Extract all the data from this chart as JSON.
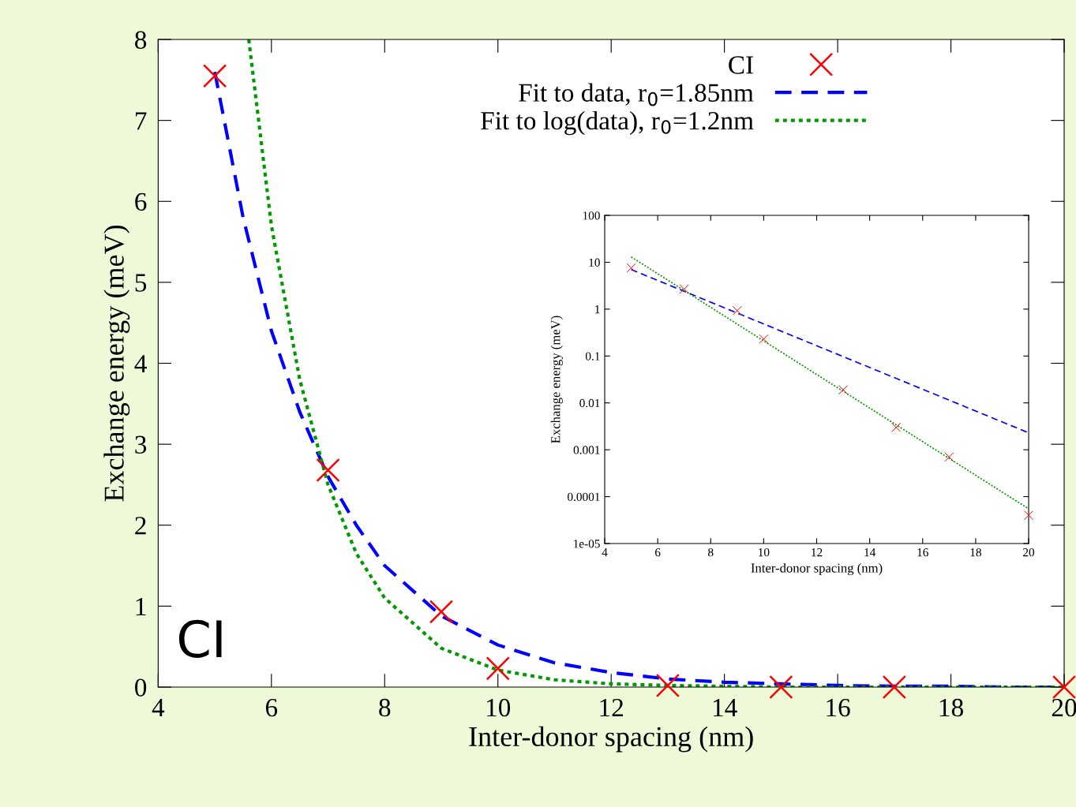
{
  "chart_data": [
    {
      "type": "scatter",
      "xlabel": "Inter-donor spacing (nm)",
      "ylabel": "Exchange energy (meV)",
      "xlim": [
        4,
        20
      ],
      "ylim": [
        0,
        8
      ],
      "xticks": [
        4,
        6,
        8,
        10,
        12,
        14,
        16,
        18,
        20
      ],
      "yticks": [
        0,
        1,
        2,
        3,
        4,
        5,
        6,
        7,
        8
      ],
      "legend": "top right",
      "grid": false,
      "annotations": [
        "CI"
      ],
      "series": [
        {
          "name": "CI",
          "type": "scatter",
          "marker": "cross",
          "color": "#ff0000",
          "x": [
            5,
            7,
            9,
            10,
            13,
            15,
            17,
            20
          ],
          "values": [
            7.55,
            2.68,
            0.93,
            0.23,
            0.02,
            0.0,
            0.0,
            0.0
          ]
        },
        {
          "name": "Fit to data, r$_{0}$=1.85nm",
          "type": "line",
          "line_style": "dashed",
          "color": "#0000ff",
          "x": [
            5,
            5.5,
            6,
            6.5,
            7,
            7.5,
            8,
            9,
            10,
            11,
            12,
            13,
            14,
            15,
            16,
            17,
            18,
            19,
            20
          ],
          "values": [
            7.6,
            5.8,
            4.4,
            3.4,
            2.6,
            2.0,
            1.5,
            0.88,
            0.52,
            0.3,
            0.18,
            0.1,
            0.06,
            0.04,
            0.02,
            0.01,
            0.01,
            0.0,
            0.0
          ]
        },
        {
          "name": "Fit to log(data), r$_{0}$=1.2nm",
          "type": "line",
          "line_style": "dotted",
          "color": "#009900",
          "x": [
            5.6,
            6,
            6.5,
            7,
            7.5,
            8,
            9,
            10,
            11,
            12,
            13,
            14,
            15,
            16,
            17,
            18,
            19,
            20
          ],
          "values": [
            8.0,
            5.7,
            3.8,
            2.5,
            1.65,
            1.1,
            0.48,
            0.21,
            0.09,
            0.04,
            0.02,
            0.01,
            0.0,
            0.0,
            0.0,
            0.0,
            0.0,
            0.0
          ]
        }
      ]
    },
    {
      "type": "scatter",
      "xlabel": "Inter-donor spacing (nm)",
      "ylabel": "Exchange energy (meV)",
      "log": "y",
      "xlim": [
        4,
        20
      ],
      "ylim": [
        1e-05,
        100
      ],
      "xticks": [
        4,
        6,
        8,
        10,
        12,
        14,
        16,
        18,
        20
      ],
      "yticks": [
        {
          "value": 1e-05,
          "label": "1e-05"
        },
        {
          "value": 0.0001,
          "label": "0.0001"
        },
        {
          "value": 0.001,
          "label": "0.001"
        },
        {
          "value": 0.01,
          "label": "0.01"
        },
        {
          "value": 0.1,
          "label": "0.1"
        },
        {
          "value": 1,
          "label": "1"
        },
        {
          "value": 10,
          "label": "10"
        },
        {
          "value": 100,
          "label": "100"
        }
      ],
      "grid": false,
      "series": [
        {
          "type": "scatter",
          "marker": "cross",
          "color": "#ff0000",
          "x": [
            5,
            7,
            9,
            10,
            13,
            15,
            17,
            20
          ],
          "values": [
            7.55,
            2.68,
            0.93,
            0.23,
            0.019,
            0.003,
            0.0007,
            4e-05
          ]
        },
        {
          "type": "line",
          "line_style": "dashed",
          "color": "#0000ff",
          "x": [
            5,
            20
          ],
          "values": [
            7.0,
            0.0023
          ]
        },
        {
          "type": "line",
          "line_style": "dotted",
          "color": "#009900",
          "x": [
            5,
            20
          ],
          "values": [
            13,
            5.5e-05
          ]
        }
      ]
    }
  ]
}
